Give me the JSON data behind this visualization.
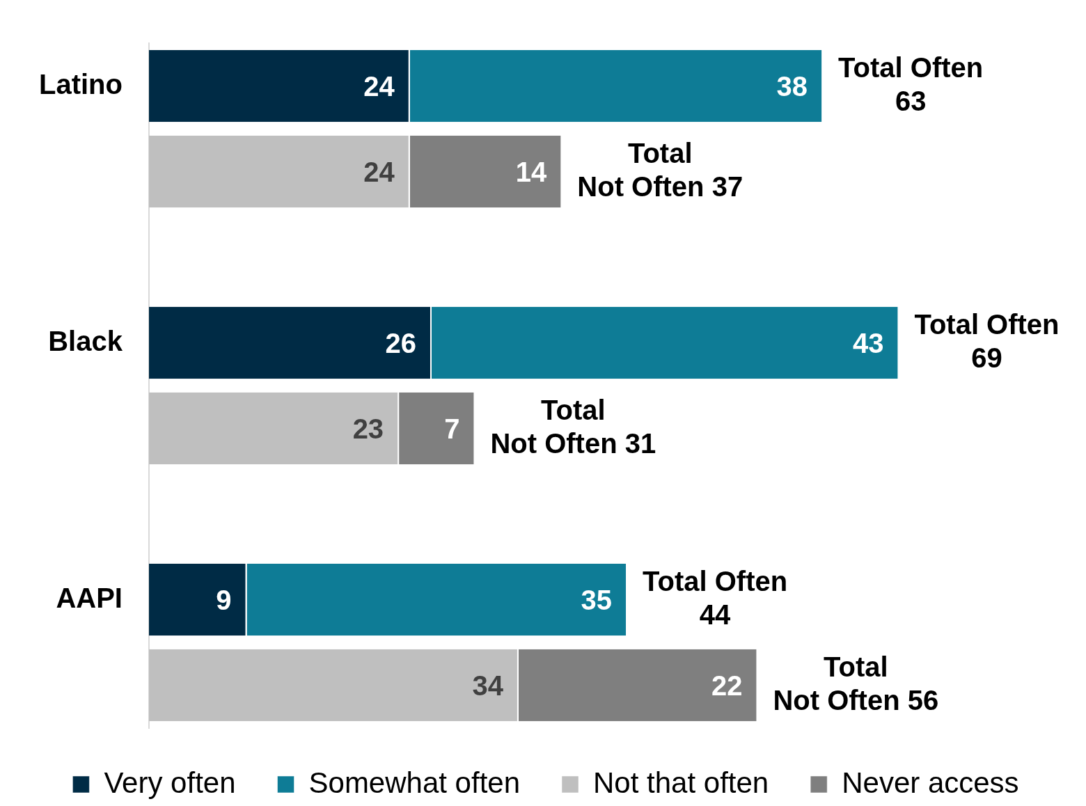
{
  "chart_data": {
    "type": "bar",
    "orientation": "horizontal",
    "stacked": true,
    "data_labels": true,
    "legend": "bottom",
    "tick_labels": "y",
    "categories": [
      "Latino",
      null,
      null,
      "Black",
      null,
      null,
      "AAPI",
      null
    ],
    "series": [
      {
        "name": "Very often",
        "color": "#002b45",
        "values": [
          24,
          null,
          null,
          26,
          null,
          null,
          9,
          null
        ]
      },
      {
        "name": "Somewhat often",
        "color": "#0e7c96",
        "values": [
          38,
          null,
          null,
          43,
          null,
          null,
          35,
          null
        ]
      },
      {
        "name": "Not that often",
        "color": "#bfbfbf",
        "values": [
          null,
          24,
          null,
          null,
          23,
          null,
          null,
          34
        ]
      },
      {
        "name": "Never access",
        "color": "#7f7f7f",
        "values": [
          null,
          14,
          null,
          null,
          7,
          null,
          null,
          22
        ]
      }
    ],
    "totals": [
      "Total Often\n63",
      "Total\nNot Often 37",
      null,
      "Total Often\n69",
      "Total\nNot Often 31",
      null,
      "Total Often\n44",
      "Total\nNot Often 56"
    ]
  }
}
